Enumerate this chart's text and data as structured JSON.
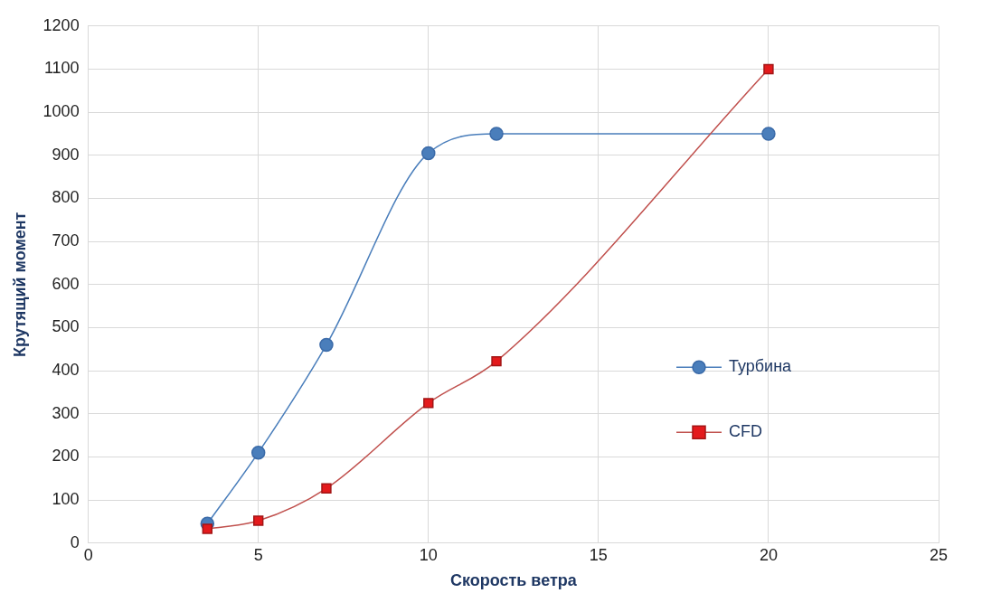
{
  "chart_data": {
    "type": "line",
    "xlabel": "Скорость ветра",
    "ylabel": "Крутящий момент",
    "xlim": [
      0,
      25
    ],
    "xticks": [
      0,
      5,
      10,
      15,
      20,
      25
    ],
    "ylim": [
      0,
      1200
    ],
    "yticks": [
      0,
      100,
      200,
      300,
      400,
      500,
      600,
      700,
      800,
      900,
      1000,
      1100,
      1200
    ],
    "grid": true,
    "legend": "right",
    "series": [
      {
        "name": "Турбина",
        "color": "#4a7ebb",
        "marker": "circle",
        "x": [
          3.5,
          5,
          7,
          10,
          12,
          20
        ],
        "values": [
          45,
          210,
          460,
          905,
          950,
          950
        ]
      },
      {
        "name": "CFD",
        "color": "#c0504d",
        "marker": "square",
        "x": [
          3.5,
          5,
          7,
          10,
          12,
          20
        ],
        "values": [
          33,
          52,
          127,
          325,
          422,
          1100
        ]
      }
    ]
  }
}
